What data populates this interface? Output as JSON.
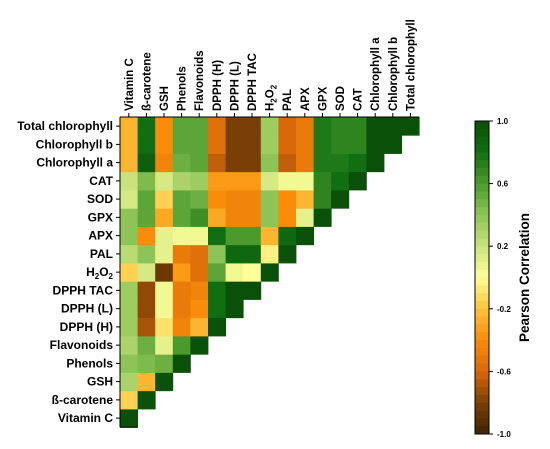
{
  "chart_data": {
    "type": "heatmap",
    "title": "",
    "variables": [
      "Vitamin C",
      "ß-carotene",
      "GSH",
      "Phenols",
      "Flavonoids",
      "DPPH (H)",
      "DPPH (L)",
      "DPPH TAC",
      "H2O2",
      "PAL",
      "APX",
      "GPX",
      "SOD",
      "CAT",
      "Chlorophyll a",
      "Chlorophyll b",
      "Total chlorophyll"
    ],
    "matrix": [
      [
        1.0,
        null,
        null,
        null,
        null,
        null,
        null,
        null,
        null,
        null,
        null,
        null,
        null,
        null,
        null,
        null,
        null
      ],
      [
        -0.15,
        1.0,
        null,
        null,
        null,
        null,
        null,
        null,
        null,
        null,
        null,
        null,
        null,
        null,
        null,
        null,
        null
      ],
      [
        0.3,
        -0.25,
        1.0,
        null,
        null,
        null,
        null,
        null,
        null,
        null,
        null,
        null,
        null,
        null,
        null,
        null,
        null
      ],
      [
        0.4,
        0.45,
        0.5,
        1.0,
        null,
        null,
        null,
        null,
        null,
        null,
        null,
        null,
        null,
        null,
        null,
        null,
        null
      ],
      [
        0.3,
        0.5,
        0.1,
        0.6,
        1.0,
        null,
        null,
        null,
        null,
        null,
        null,
        null,
        null,
        null,
        null,
        null,
        null
      ],
      [
        0.35,
        -0.7,
        -0.1,
        -0.45,
        -0.25,
        1.0,
        null,
        null,
        null,
        null,
        null,
        null,
        null,
        null,
        null,
        null,
        null
      ],
      [
        0.35,
        -0.75,
        0.05,
        -0.5,
        -0.4,
        0.8,
        1.0,
        null,
        null,
        null,
        null,
        null,
        null,
        null,
        null,
        null,
        null
      ],
      [
        0.35,
        -0.75,
        0.05,
        -0.5,
        -0.45,
        0.8,
        1.0,
        1.0,
        null,
        null,
        null,
        null,
        null,
        null,
        null,
        null,
        null
      ],
      [
        -0.15,
        0.15,
        -0.85,
        -0.35,
        -0.55,
        0.55,
        0.05,
        0.0,
        1.0,
        null,
        null,
        null,
        null,
        null,
        null,
        null,
        null
      ],
      [
        0.25,
        0.4,
        0.1,
        -0.5,
        -0.55,
        0.4,
        0.85,
        0.85,
        -0.05,
        1.0,
        null,
        null,
        null,
        null,
        null,
        null,
        null
      ],
      [
        0.4,
        -0.4,
        0.1,
        0.05,
        0.05,
        0.8,
        0.6,
        0.6,
        -0.25,
        0.85,
        1.0,
        null,
        null,
        null,
        null,
        null,
        null
      ],
      [
        0.4,
        0.55,
        -0.3,
        0.55,
        0.65,
        -0.3,
        -0.45,
        -0.45,
        0.4,
        -0.4,
        0.1,
        1.0,
        null,
        null,
        null,
        null,
        null
      ],
      [
        0.15,
        0.55,
        -0.15,
        0.55,
        0.5,
        -0.4,
        -0.45,
        -0.45,
        0.4,
        -0.4,
        -0.25,
        0.7,
        1.0,
        null,
        null,
        null,
        null
      ],
      [
        0.2,
        0.45,
        0.15,
        0.3,
        0.35,
        -0.35,
        -0.35,
        -0.35,
        0.15,
        0.05,
        0.05,
        0.7,
        0.8,
        1.0,
        null,
        null,
        null
      ],
      [
        -0.25,
        0.9,
        -0.45,
        0.5,
        0.55,
        -0.65,
        -0.8,
        -0.8,
        0.4,
        -0.65,
        -0.5,
        0.75,
        0.75,
        0.8,
        1.0,
        null,
        null
      ],
      [
        -0.25,
        0.8,
        -0.4,
        0.55,
        0.55,
        -0.55,
        -0.8,
        -0.8,
        0.35,
        -0.6,
        -0.5,
        0.75,
        0.7,
        0.7,
        1.0,
        1.0,
        null
      ],
      [
        -0.25,
        0.8,
        -0.4,
        0.55,
        0.55,
        -0.55,
        -0.8,
        -0.8,
        0.35,
        -0.6,
        -0.5,
        0.75,
        0.7,
        0.7,
        1.0,
        1.0,
        1.0
      ]
    ],
    "colorbar": {
      "label": "Pearson Correlation",
      "range": [
        -1.0,
        1.0
      ],
      "ticks": [
        "1.0",
        "0.6",
        "0.2",
        "-0.2",
        "-0.6",
        "-1.0"
      ],
      "tick_values": [
        1.0,
        0.6,
        0.2,
        -0.2,
        -0.6,
        -1.0
      ]
    },
    "colors": {
      "stops": [
        "#3e2404",
        "#7a3f06",
        "#d8680a",
        "#f98d0a",
        "#fcc23c",
        "#ffff99",
        "#c9e27e",
        "#8ec457",
        "#4c9a2c",
        "#116e11",
        "#0a5008"
      ],
      "grid_line": "#d9d9d9",
      "frame": "#000000"
    }
  }
}
